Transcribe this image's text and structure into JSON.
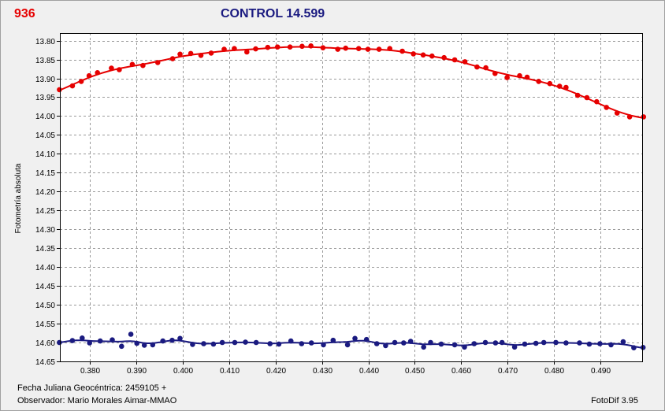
{
  "object_label": "936",
  "control_label": "CONTROL 14.599",
  "footer": {
    "date_label": "Fecha Juliana Geocéntrica: 2459105 +",
    "observer": "Observador: Mario Morales Aimar-MMAO",
    "software": "FotoDif 3.95"
  },
  "colors": {
    "object": "#e60000",
    "control": "#1a1a80",
    "plot_bg": "#ffffff",
    "window_bg": "#f0f0f0"
  },
  "chart_data": {
    "type": "scatter",
    "ylabel": "Fotometría absoluta",
    "xlabel": "",
    "xlim": [
      0.3735,
      0.499
    ],
    "ylim": [
      14.65,
      13.78
    ],
    "y_inverted": true,
    "grid": true,
    "x_ticks": [
      0.38,
      0.39,
      0.4,
      0.41,
      0.42,
      0.43,
      0.44,
      0.45,
      0.46,
      0.47,
      0.48,
      0.49
    ],
    "x_tick_labels": [
      "0.380",
      "0.390",
      "0.400",
      "0.410",
      "0.420",
      "0.430",
      "0.440",
      "0.450",
      "0.460",
      "0.470",
      "0.480",
      "0.490"
    ],
    "y_ticks": [
      13.8,
      13.85,
      13.9,
      13.95,
      14.0,
      14.05,
      14.1,
      14.15,
      14.2,
      14.25,
      14.3,
      14.35,
      14.4,
      14.45,
      14.5,
      14.55,
      14.6,
      14.65
    ],
    "y_tick_labels": [
      "13.80",
      "13.85",
      "13.90",
      "13.95",
      "14.00",
      "14.05",
      "14.10",
      "14.15",
      "14.20",
      "14.25",
      "14.30",
      "14.35",
      "14.40",
      "14.45",
      "14.50",
      "14.55",
      "14.60",
      "14.65"
    ],
    "series": [
      {
        "key": "object",
        "x": [
          0.3734,
          0.3762,
          0.3781,
          0.3798,
          0.3816,
          0.3846,
          0.3863,
          0.3891,
          0.3914,
          0.3946,
          0.3978,
          0.3994,
          0.4017,
          0.4039,
          0.4061,
          0.4089,
          0.4111,
          0.4138,
          0.4157,
          0.4183,
          0.4204,
          0.4231,
          0.4257,
          0.4276,
          0.4302,
          0.4334,
          0.4351,
          0.4379,
          0.4399,
          0.4423,
          0.4446,
          0.4473,
          0.4497,
          0.4518,
          0.4537,
          0.4563,
          0.4586,
          0.4608,
          0.4634,
          0.4653,
          0.4673,
          0.4699,
          0.4726,
          0.4742,
          0.4767,
          0.4791,
          0.4812,
          0.4826,
          0.4851,
          0.4871,
          0.4892,
          0.4913,
          0.4936,
          0.4963,
          0.4993
        ],
        "y": [
          13.93,
          13.92,
          13.908,
          13.893,
          13.885,
          13.873,
          13.877,
          13.863,
          13.866,
          13.858,
          13.848,
          13.836,
          13.834,
          13.839,
          13.833,
          13.823,
          13.821,
          13.83,
          13.822,
          13.818,
          13.817,
          13.817,
          13.815,
          13.814,
          13.819,
          13.823,
          13.82,
          13.821,
          13.823,
          13.823,
          13.821,
          13.828,
          13.835,
          13.838,
          13.841,
          13.845,
          13.851,
          13.856,
          13.87,
          13.872,
          13.887,
          13.898,
          13.893,
          13.897,
          13.908,
          13.914,
          13.921,
          13.924,
          13.945,
          13.951,
          13.962,
          13.977,
          13.992,
          14.002,
          14.002
        ]
      },
      {
        "key": "control",
        "x": [
          0.3734,
          0.3762,
          0.3783,
          0.3799,
          0.3822,
          0.3848,
          0.3868,
          0.3888,
          0.3901,
          0.3917,
          0.3935,
          0.3957,
          0.3977,
          0.3994,
          0.4021,
          0.4045,
          0.4066,
          0.4085,
          0.4112,
          0.4135,
          0.4158,
          0.4188,
          0.4207,
          0.4233,
          0.4256,
          0.4277,
          0.4303,
          0.4324,
          0.4355,
          0.4371,
          0.4396,
          0.4418,
          0.4437,
          0.4457,
          0.4476,
          0.4491,
          0.4519,
          0.4534,
          0.4557,
          0.4586,
          0.4607,
          0.4628,
          0.4652,
          0.4674,
          0.4688,
          0.4715,
          0.4737,
          0.4761,
          0.4778,
          0.4804,
          0.4826,
          0.4855,
          0.4876,
          0.4899,
          0.4923,
          0.4949,
          0.4972,
          0.4992
        ],
        "y": [
          14.6,
          14.595,
          14.588,
          14.601,
          14.596,
          14.593,
          14.61,
          14.578,
          14.602,
          14.607,
          14.606,
          14.596,
          14.594,
          14.589,
          14.605,
          14.603,
          14.604,
          14.6,
          14.6,
          14.599,
          14.6,
          14.603,
          14.604,
          14.596,
          14.603,
          14.601,
          14.606,
          14.594,
          14.606,
          14.589,
          14.592,
          14.603,
          14.608,
          14.6,
          14.601,
          14.597,
          14.612,
          14.6,
          14.604,
          14.606,
          14.612,
          14.603,
          14.6,
          14.601,
          14.6,
          14.612,
          14.604,
          14.602,
          14.6,
          14.6,
          14.601,
          14.601,
          14.604,
          14.603,
          14.606,
          14.598,
          14.614,
          14.613
        ]
      }
    ]
  }
}
